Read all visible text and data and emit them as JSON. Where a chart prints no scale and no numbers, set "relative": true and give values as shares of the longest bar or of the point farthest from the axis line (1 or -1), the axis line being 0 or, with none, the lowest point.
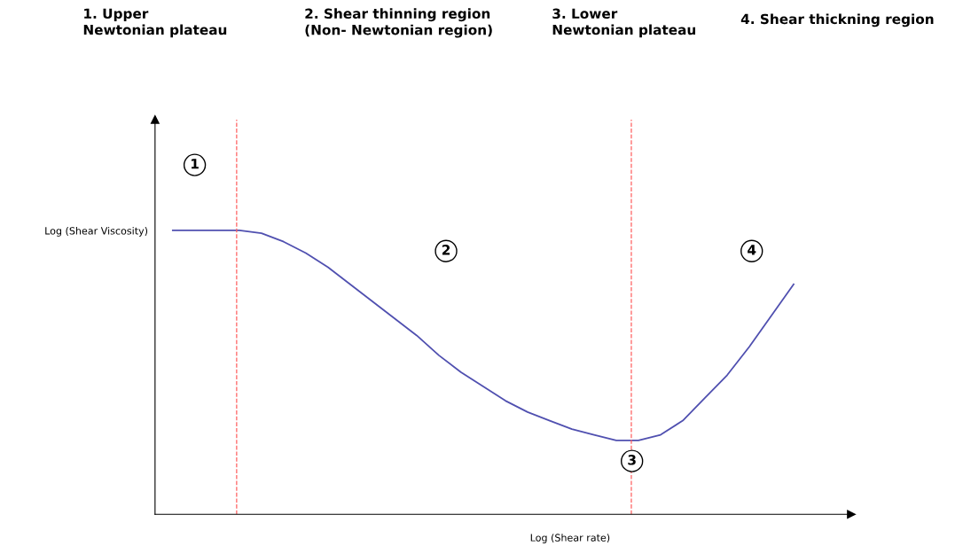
{
  "chart_data": {
    "type": "line",
    "relative": true,
    "xlabel": "Log (Shear rate)",
    "ylabel": "Log (Shear Viscosity)",
    "categories": [
      null,
      null,
      null,
      null,
      null,
      null,
      null,
      null,
      null,
      null,
      null,
      null,
      null,
      null,
      null,
      null,
      null,
      null,
      null,
      null,
      null,
      null,
      null,
      null,
      null,
      null,
      null,
      null,
      null
    ],
    "series": [
      {
        "color": "#5050b0",
        "values": [
          1,
          1,
          1,
          1,
          0.99,
          0.96,
          0.92,
          0.87,
          0.81,
          0.75,
          0.69,
          0.63,
          0.56,
          0.5,
          0.45,
          0.4,
          0.36,
          0.33,
          0.3,
          0.28,
          0.26,
          0.26,
          0.28,
          0.33,
          0.41,
          0.49,
          0.59,
          0.7,
          0.81
        ]
      }
    ],
    "annotations": [
      "1. Upper\nNewtonian plateau",
      "2. Shear thinning region\n(Non- Newtonian region)",
      "3. Lower\nNewtonian plateau",
      "4. Shear thickning region",
      "1",
      "2",
      "3",
      "4"
    ],
    "grid": false,
    "legend": false,
    "marker": "none",
    "line_style": "solid"
  }
}
